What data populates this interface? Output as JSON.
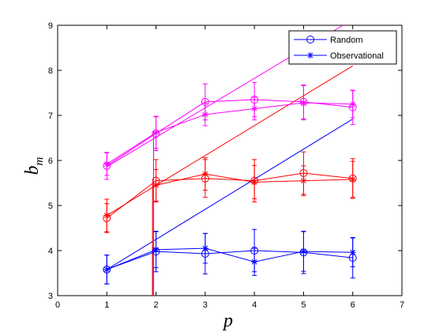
{
  "chart_data": {
    "type": "line",
    "xlabel_main": "p",
    "ylabel_main": "b",
    "ylabel_sub": "m",
    "xlim": [
      0,
      7
    ],
    "ylim": [
      3,
      9
    ],
    "xticks": [
      "0",
      "1",
      "2",
      "3",
      "4",
      "5",
      "6",
      "7"
    ],
    "yticks": [
      "3",
      "4",
      "5",
      "6",
      "7",
      "8",
      "9"
    ],
    "grid": false,
    "legend_position": "top-right",
    "legend": [
      {
        "label": "Random",
        "marker": "circle",
        "color": "#0000ff"
      },
      {
        "label": "Observational",
        "marker": "star",
        "color": "#0000ff"
      }
    ],
    "series": [
      {
        "color": "#0000ff",
        "marker": "circle",
        "x": [
          1,
          2,
          3,
          4,
          5,
          6
        ],
        "y": [
          3.58,
          3.98,
          3.93,
          4.0,
          3.96,
          3.84
        ],
        "err": [
          0.32,
          0.45,
          0.45,
          0.47,
          0.47,
          0.45
        ]
      },
      {
        "color": "#0000ff",
        "marker": "star",
        "x": [
          1,
          2,
          3,
          4,
          5,
          6
        ],
        "y": [
          3.58,
          4.02,
          4.05,
          3.75,
          3.98,
          3.96
        ],
        "err": [
          0.32,
          0.4,
          0.33,
          0.3,
          0.44,
          0.32
        ]
      },
      {
        "color": "#ff0000",
        "marker": "circle",
        "x": [
          1,
          2,
          3,
          4,
          5,
          6
        ],
        "y": [
          4.72,
          5.55,
          5.6,
          5.55,
          5.72,
          5.6
        ],
        "err": [
          0.32,
          0.47,
          0.42,
          0.47,
          0.47,
          0.44
        ]
      },
      {
        "color": "#ff0000",
        "marker": "star",
        "x": [
          1,
          2,
          3,
          4,
          5,
          6
        ],
        "y": [
          4.78,
          5.45,
          5.7,
          5.52,
          5.55,
          5.58
        ],
        "err": [
          0.36,
          0.35,
          0.36,
          0.37,
          0.33,
          0.4
        ]
      },
      {
        "color": "#ff00ff",
        "marker": "circle",
        "x": [
          1,
          2,
          3,
          4,
          5,
          6
        ],
        "y": [
          5.88,
          6.6,
          7.3,
          7.35,
          7.3,
          7.18
        ],
        "err": [
          0.3,
          0.38,
          0.4,
          0.38,
          0.38,
          0.38
        ]
      },
      {
        "color": "#ff00ff",
        "marker": "star",
        "x": [
          1,
          2,
          3,
          4,
          5,
          6
        ],
        "y": [
          5.92,
          6.62,
          7.02,
          7.15,
          7.28,
          7.25
        ],
        "err": [
          0.25,
          0.35,
          0.25,
          0.25,
          0.38,
          0.3
        ]
      }
    ],
    "fits": [
      {
        "color": "#0000ff",
        "x": [
          1,
          6
        ],
        "y": [
          3.58,
          6.92
        ]
      },
      {
        "color": "#ff0000",
        "x": [
          1.93,
          6
        ],
        "y": [
          5.4,
          8.1
        ]
      },
      {
        "color": "#ff00ff",
        "x": [
          1,
          5.8
        ],
        "y": [
          5.86,
          9.0
        ]
      }
    ],
    "divergence": [
      {
        "color": "#0000ff",
        "x": [
          1.93,
          1.93
        ],
        "y": [
          3,
          4.1
        ]
      },
      {
        "color": "#ff0000",
        "x": [
          1.93,
          1.93
        ],
        "y": [
          3,
          5.5
        ]
      },
      {
        "color": "#ff00ff",
        "x": [
          1.95,
          1.95
        ],
        "y": [
          3,
          6.65
        ]
      }
    ]
  }
}
